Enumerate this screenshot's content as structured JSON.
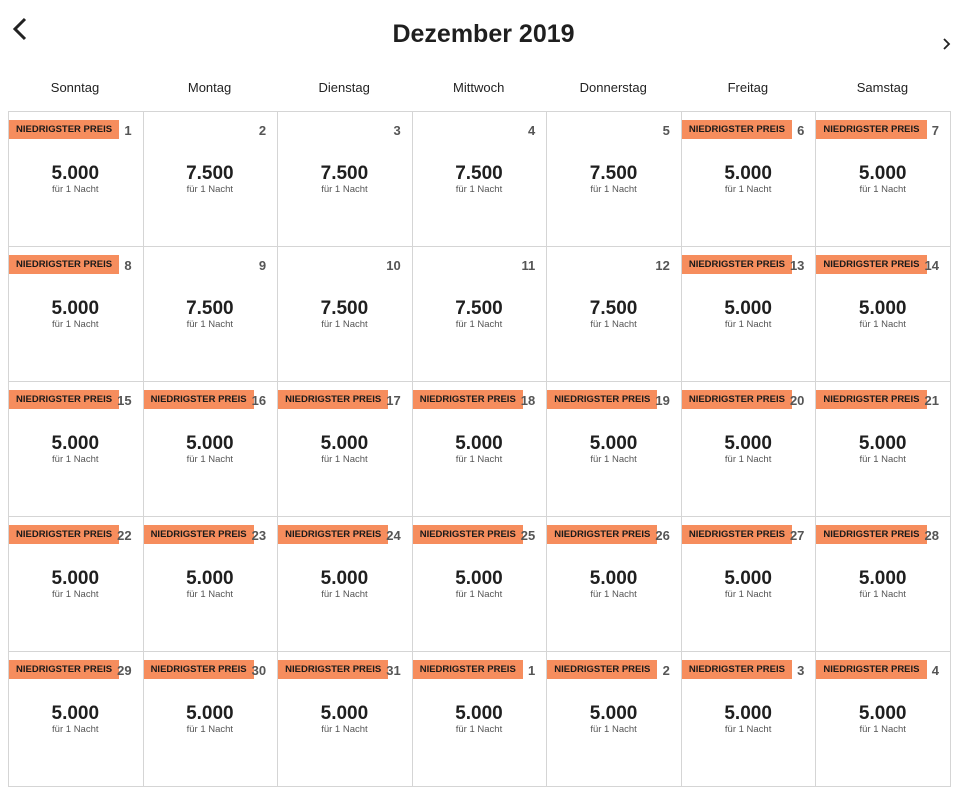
{
  "header": {
    "title": "Dezember 2019"
  },
  "weekdays": [
    "Sonntag",
    "Montag",
    "Dienstag",
    "Mittwoch",
    "Donnerstag",
    "Freitag",
    "Samstag"
  ],
  "cells": [
    {
      "badge": "NIEDRIGSTER PREIS",
      "day": 1,
      "price": "5.000",
      "note": "für 1 Nacht"
    },
    {
      "day": 2,
      "price": "7.500",
      "note": "für 1 Nacht"
    },
    {
      "day": 3,
      "price": "7.500",
      "note": "für 1 Nacht"
    },
    {
      "day": 4,
      "price": "7.500",
      "note": "für 1 Nacht"
    },
    {
      "day": 5,
      "price": "7.500",
      "note": "für 1 Nacht"
    },
    {
      "badge": "NIEDRIGSTER PREIS",
      "day": 6,
      "price": "5.000",
      "note": "für 1 Nacht"
    },
    {
      "badge": "NIEDRIGSTER PREIS",
      "day": 7,
      "price": "5.000",
      "note": "für 1 Nacht"
    },
    {
      "badge": "NIEDRIGSTER PREIS",
      "day": 8,
      "price": "5.000",
      "note": "für 1 Nacht"
    },
    {
      "day": 9,
      "price": "7.500",
      "note": "für 1 Nacht"
    },
    {
      "day": 10,
      "price": "7.500",
      "note": "für 1 Nacht"
    },
    {
      "day": 11,
      "price": "7.500",
      "note": "für 1 Nacht"
    },
    {
      "day": 12,
      "price": "7.500",
      "note": "für 1 Nacht"
    },
    {
      "badge": "NIEDRIGSTER PREIS",
      "day": 13,
      "price": "5.000",
      "note": "für 1 Nacht"
    },
    {
      "badge": "NIEDRIGSTER PREIS",
      "day": 14,
      "price": "5.000",
      "note": "für 1 Nacht"
    },
    {
      "badge": "NIEDRIGSTER PREIS",
      "day": 15,
      "price": "5.000",
      "note": "für 1 Nacht"
    },
    {
      "badge": "NIEDRIGSTER PREIS",
      "day": 16,
      "price": "5.000",
      "note": "für 1 Nacht"
    },
    {
      "badge": "NIEDRIGSTER PREIS",
      "day": 17,
      "price": "5.000",
      "note": "für 1 Nacht"
    },
    {
      "badge": "NIEDRIGSTER PREIS",
      "day": 18,
      "price": "5.000",
      "note": "für 1 Nacht"
    },
    {
      "badge": "NIEDRIGSTER PREIS",
      "day": 19,
      "price": "5.000",
      "note": "für 1 Nacht"
    },
    {
      "badge": "NIEDRIGSTER PREIS",
      "day": 20,
      "price": "5.000",
      "note": "für 1 Nacht"
    },
    {
      "badge": "NIEDRIGSTER PREIS",
      "day": 21,
      "price": "5.000",
      "note": "für 1 Nacht"
    },
    {
      "badge": "NIEDRIGSTER PREIS",
      "day": 22,
      "price": "5.000",
      "note": "für 1 Nacht"
    },
    {
      "badge": "NIEDRIGSTER PREIS",
      "day": 23,
      "price": "5.000",
      "note": "für 1 Nacht"
    },
    {
      "badge": "NIEDRIGSTER PREIS",
      "day": 24,
      "price": "5.000",
      "note": "für 1 Nacht"
    },
    {
      "badge": "NIEDRIGSTER PREIS",
      "day": 25,
      "price": "5.000",
      "note": "für 1 Nacht"
    },
    {
      "badge": "NIEDRIGSTER PREIS",
      "day": 26,
      "price": "5.000",
      "note": "für 1 Nacht"
    },
    {
      "badge": "NIEDRIGSTER PREIS",
      "day": 27,
      "price": "5.000",
      "note": "für 1 Nacht"
    },
    {
      "badge": "NIEDRIGSTER PREIS",
      "day": 28,
      "price": "5.000",
      "note": "für 1 Nacht"
    },
    {
      "badge": "NIEDRIGSTER PREIS",
      "day": 29,
      "price": "5.000",
      "note": "für 1 Nacht"
    },
    {
      "badge": "NIEDRIGSTER PREIS",
      "day": 30,
      "price": "5.000",
      "note": "für 1 Nacht"
    },
    {
      "badge": "NIEDRIGSTER PREIS",
      "day": 31,
      "price": "5.000",
      "note": "für 1 Nacht"
    },
    {
      "badge": "NIEDRIGSTER PREIS",
      "day": 1,
      "price": "5.000",
      "note": "für 1 Nacht"
    },
    {
      "badge": "NIEDRIGSTER PREIS",
      "day": 2,
      "price": "5.000",
      "note": "für 1 Nacht"
    },
    {
      "badge": "NIEDRIGSTER PREIS",
      "day": 3,
      "price": "5.000",
      "note": "für 1 Nacht"
    },
    {
      "badge": "NIEDRIGSTER PREIS",
      "day": 4,
      "price": "5.000",
      "note": "für 1 Nacht"
    }
  ]
}
